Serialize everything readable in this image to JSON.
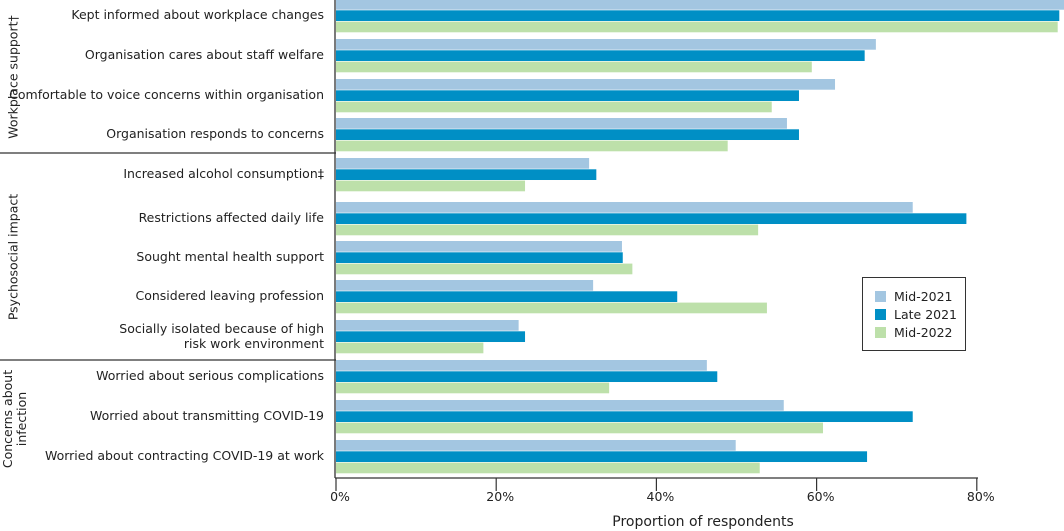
{
  "chart_data": {
    "type": "bar",
    "orientation": "horizontal",
    "xlabel": "Proportion of respondents",
    "xlim": [
      0,
      90
    ],
    "xticks": [
      "0%",
      "20%",
      "40%",
      "60%",
      "80%"
    ],
    "xtick_values": [
      0,
      20,
      40,
      60,
      80
    ],
    "legend_position": "right",
    "groups": [
      {
        "label": "Workplace support†",
        "categories": [
          0,
          1,
          2,
          3
        ]
      },
      {
        "label": "Psychosocial impact",
        "categories": [
          4,
          5,
          6,
          7,
          8
        ]
      },
      {
        "label": "Concerns about\ninfection",
        "categories": [
          9,
          10,
          11
        ]
      }
    ],
    "categories": [
      "Kept informed about workplace changes",
      "Organisation cares about staff welfare",
      "Comfortable to voice concerns within organisation",
      "Organisation responds to concerns",
      "Increased alcohol consumption‡",
      "Restrictions affected daily life",
      "Sought mental health support",
      "Considered leaving profession",
      "Socially isolated because of high\nrisk work environment",
      "Worried about serious complications",
      "Worried about transmitting COVID-19",
      "Worried about contracting COVID-19 at work"
    ],
    "series": [
      {
        "name": "Mid-2021",
        "color": "#a3c6e1",
        "values": [
          92,
          67.4,
          62.3,
          56.3,
          31.6,
          72.0,
          35.7,
          32.1,
          22.8,
          46.3,
          55.9,
          49.9
        ]
      },
      {
        "name": "Late 2021",
        "color": "#008fc5",
        "values": [
          90.3,
          66.0,
          57.8,
          57.8,
          32.5,
          78.7,
          35.8,
          42.6,
          23.6,
          47.6,
          72.0,
          66.3
        ]
      },
      {
        "name": "Mid-2022",
        "color": "#bde0aa",
        "values": [
          90.1,
          59.4,
          54.4,
          48.9,
          23.6,
          52.7,
          37.0,
          53.8,
          18.4,
          34.1,
          60.8,
          52.9
        ]
      }
    ]
  }
}
